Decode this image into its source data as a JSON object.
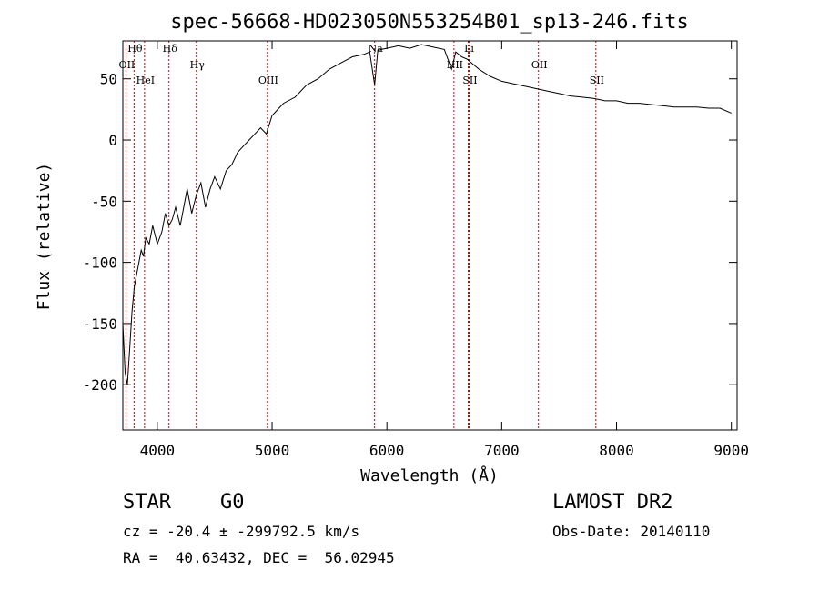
{
  "chart_data": {
    "type": "line",
    "title": "spec-56668-HD023050N553254B01_sp13-246.fits",
    "xlabel": "Wavelength (Å)",
    "ylabel": "Flux (relative)",
    "xlim": [
      3700,
      9050
    ],
    "ylim": [
      -237,
      81
    ],
    "xticks": [
      4000,
      5000,
      6000,
      7000,
      8000,
      9000
    ],
    "yticks": [
      -200,
      -150,
      -100,
      -50,
      0,
      50
    ],
    "grid": false,
    "line_color": "#000000",
    "marker_color": "#cc0000",
    "series": [
      {
        "x": [
          3700,
          3720,
          3740,
          3760,
          3780,
          3800,
          3820,
          3840,
          3860,
          3880,
          3900,
          3930,
          3960,
          4000,
          4040,
          4070,
          4102,
          4130,
          4160,
          4200,
          4230,
          4260,
          4300,
          4340,
          4380,
          4420,
          4460,
          4500,
          4550,
          4600,
          4650,
          4700,
          4750,
          4800,
          4850,
          4900,
          4950,
          5000,
          5050,
          5100,
          5200,
          5300,
          5400,
          5500,
          5600,
          5700,
          5800,
          5850,
          5893,
          5920,
          5950,
          6000,
          6100,
          6200,
          6300,
          6400,
          6500,
          6563,
          6600,
          6650,
          6700,
          6750,
          6800,
          6900,
          7000,
          7100,
          7200,
          7300,
          7400,
          7500,
          7600,
          7700,
          7800,
          7900,
          8000,
          8100,
          8200,
          8300,
          8400,
          8500,
          8600,
          8700,
          8800,
          8900,
          9000
        ],
        "y": [
          -150,
          -190,
          -200,
          -170,
          -140,
          -120,
          -110,
          -100,
          -90,
          -95,
          -80,
          -85,
          -70,
          -85,
          -75,
          -60,
          -70,
          -65,
          -55,
          -70,
          -55,
          -40,
          -60,
          -45,
          -35,
          -55,
          -40,
          -30,
          -40,
          -25,
          -20,
          -10,
          -5,
          0,
          5,
          10,
          5,
          20,
          25,
          30,
          35,
          45,
          50,
          58,
          63,
          68,
          70,
          72,
          45,
          73,
          74,
          75,
          77,
          75,
          78,
          76,
          74,
          58,
          72,
          68,
          66,
          62,
          58,
          52,
          48,
          46,
          44,
          42,
          40,
          38,
          36,
          35,
          34,
          32,
          32,
          30,
          30,
          29,
          28,
          27,
          27,
          27,
          26,
          26,
          22
        ]
      }
    ],
    "lines": [
      {
        "label": "Hθ",
        "x": 3798
      },
      {
        "label": "OII",
        "x": 3727
      },
      {
        "label": "HeI",
        "x": 3889
      },
      {
        "label": "Hδ",
        "x": 4102
      },
      {
        "label": "Hγ",
        "x": 4340
      },
      {
        "label": "OIII",
        "x": 4959
      },
      {
        "label": "Na",
        "x": 5893
      },
      {
        "label": "NII",
        "x": 6584
      },
      {
        "label": "SII",
        "x": 6716
      },
      {
        "label": "Li",
        "x": 6708
      },
      {
        "label": "OII",
        "x": 7320
      },
      {
        "label": "SII",
        "x": 7820
      }
    ]
  },
  "info": {
    "object_class": "STAR",
    "subclass": "G0",
    "survey": "LAMOST DR2",
    "cz": "cz = -20.4 ± -299792.5 km/s",
    "obs_date": "Obs-Date: 20140110",
    "coords": "RA =  40.63432, DEC =  56.02945"
  }
}
